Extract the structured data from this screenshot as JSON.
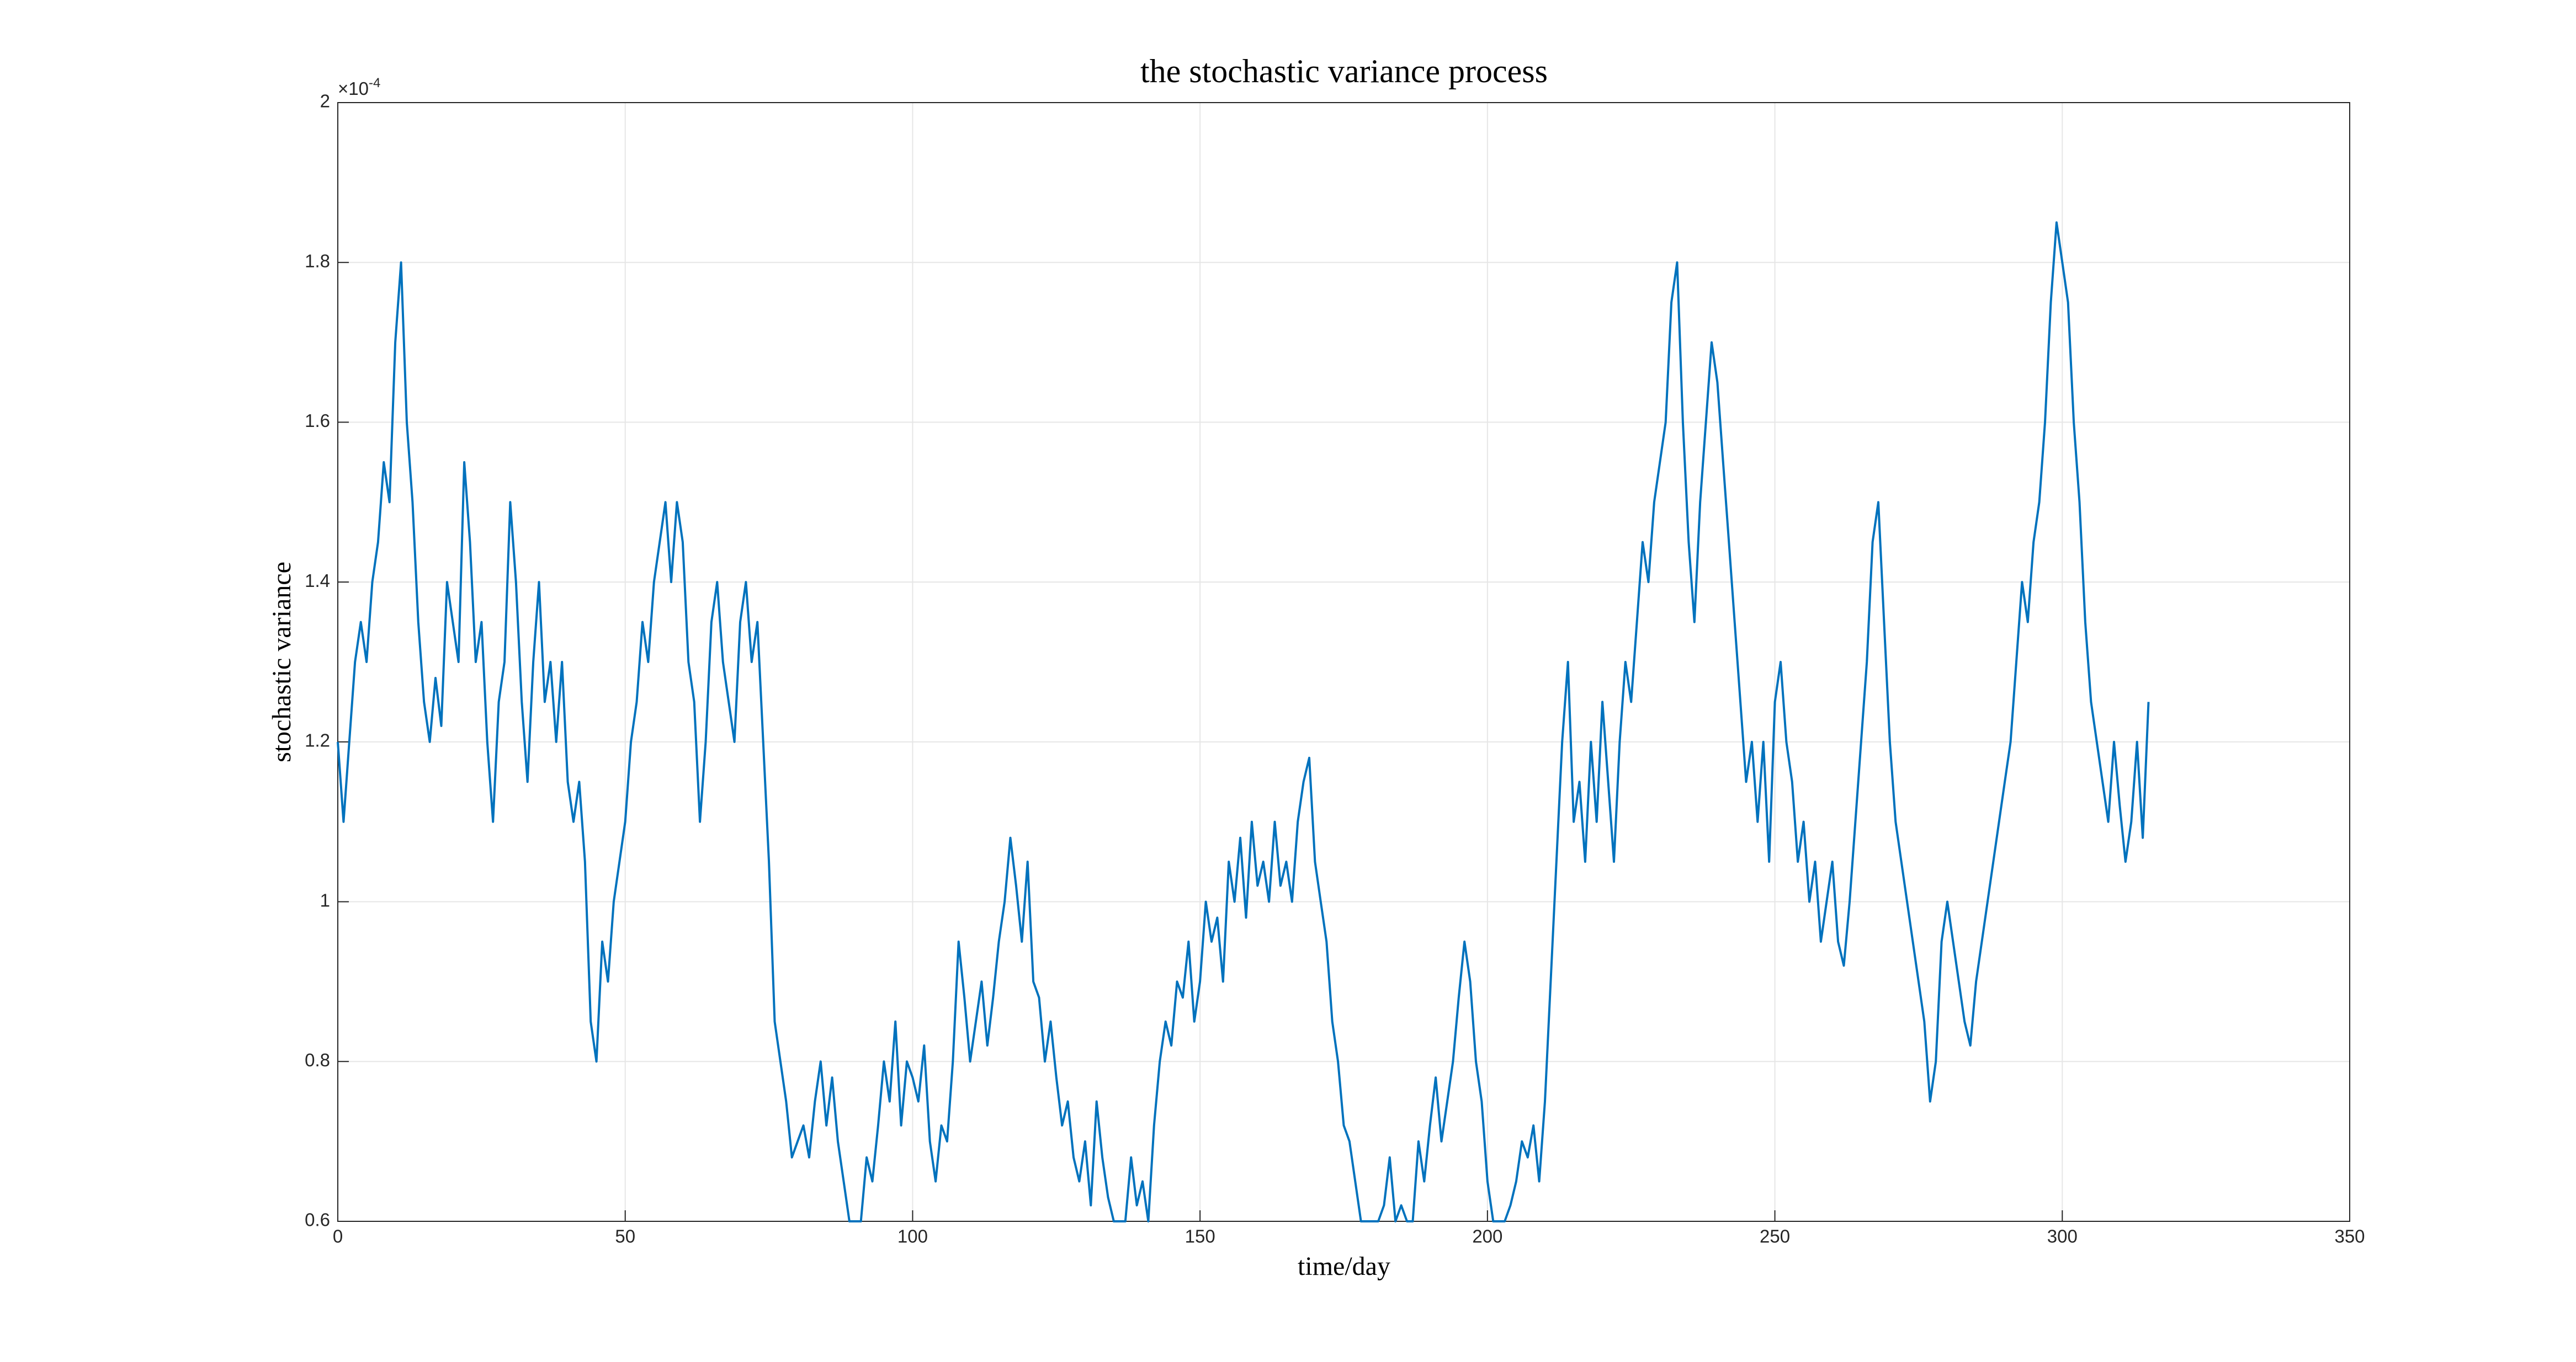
{
  "chart_data": {
    "type": "line",
    "title": "the stochastic variance process",
    "x_label": "time/day",
    "y_label": "stochastic variance",
    "y_multiplier": {
      "base": "×10",
      "exponent": "-4"
    },
    "color": "#0072bd",
    "grid": true,
    "xlim": [
      0,
      350
    ],
    "xticks": [
      0,
      50,
      100,
      150,
      200,
      250,
      300,
      350
    ],
    "ylim": [
      0.6,
      2
    ],
    "yticks": [
      0.6,
      0.8,
      1,
      1.2,
      1.4,
      1.6,
      1.8,
      2
    ],
    "x": [
      0,
      1,
      2,
      3,
      4,
      5,
      6,
      7,
      8,
      9,
      10,
      11,
      12,
      13,
      14,
      15,
      16,
      17,
      18,
      19,
      20,
      21,
      22,
      23,
      24,
      25,
      26,
      27,
      28,
      29,
      30,
      31,
      32,
      33,
      34,
      35,
      36,
      37,
      38,
      39,
      40,
      41,
      42,
      43,
      44,
      45,
      46,
      47,
      48,
      49,
      50,
      51,
      52,
      53,
      54,
      55,
      56,
      57,
      58,
      59,
      60,
      61,
      62,
      63,
      64,
      65,
      66,
      67,
      68,
      69,
      70,
      71,
      72,
      73,
      74,
      75,
      76,
      77,
      78,
      79,
      80,
      81,
      82,
      83,
      84,
      85,
      86,
      87,
      88,
      89,
      90,
      91,
      92,
      93,
      94,
      95,
      96,
      97,
      98,
      99,
      100,
      101,
      102,
      103,
      104,
      105,
      106,
      107,
      108,
      109,
      110,
      111,
      112,
      113,
      114,
      115,
      116,
      117,
      118,
      119,
      120,
      121,
      122,
      123,
      124,
      125,
      126,
      127,
      128,
      129,
      130,
      131,
      132,
      133,
      134,
      135,
      136,
      137,
      138,
      139,
      140,
      141,
      142,
      143,
      144,
      145,
      146,
      147,
      148,
      149,
      150,
      151,
      152,
      153,
      154,
      155,
      156,
      157,
      158,
      159,
      160,
      161,
      162,
      163,
      164,
      165,
      166,
      167,
      168,
      169,
      170,
      171,
      172,
      173,
      174,
      175,
      176,
      177,
      178,
      179,
      180,
      181,
      182,
      183,
      184,
      185,
      186,
      187,
      188,
      189,
      190,
      191,
      192,
      193,
      194,
      195,
      196,
      197,
      198,
      199,
      200,
      201,
      202,
      203,
      204,
      205,
      206,
      207,
      208,
      209,
      210,
      211,
      212,
      213,
      214,
      215,
      216,
      217,
      218,
      219,
      220,
      221,
      222,
      223,
      224,
      225,
      226,
      227,
      228,
      229,
      230,
      231,
      232,
      233,
      234,
      235,
      236,
      237,
      238,
      239,
      240,
      241,
      242,
      243,
      244,
      245,
      246,
      247,
      248,
      249,
      250,
      251,
      252,
      253,
      254,
      255,
      256,
      257,
      258,
      259,
      260,
      261,
      262,
      263,
      264,
      265,
      266,
      267,
      268,
      269,
      270,
      271,
      272,
      273,
      274,
      275,
      276,
      277,
      278,
      279,
      280,
      281,
      282,
      283,
      284,
      285,
      286,
      287,
      288,
      289,
      290,
      291,
      292,
      293,
      294,
      295,
      296,
      297,
      298,
      299,
      300,
      301,
      302,
      303,
      304,
      305,
      306,
      307,
      308,
      309,
      310,
      311,
      312,
      313,
      314,
      315
    ],
    "values": [
      1.2,
      1.1,
      1.2,
      1.3,
      1.35,
      1.3,
      1.4,
      1.45,
      1.55,
      1.5,
      1.7,
      1.8,
      1.6,
      1.5,
      1.35,
      1.25,
      1.2,
      1.28,
      1.22,
      1.4,
      1.35,
      1.3,
      1.55,
      1.45,
      1.3,
      1.35,
      1.2,
      1.1,
      1.25,
      1.3,
      1.5,
      1.4,
      1.25,
      1.15,
      1.3,
      1.4,
      1.25,
      1.3,
      1.2,
      1.3,
      1.15,
      1.1,
      1.15,
      1.05,
      0.85,
      0.8,
      0.95,
      0.9,
      1.0,
      1.05,
      1.1,
      1.2,
      1.25,
      1.35,
      1.3,
      1.4,
      1.45,
      1.5,
      1.4,
      1.5,
      1.45,
      1.3,
      1.25,
      1.1,
      1.2,
      1.35,
      1.4,
      1.3,
      1.25,
      1.2,
      1.35,
      1.4,
      1.3,
      1.35,
      1.2,
      1.05,
      0.85,
      0.8,
      0.75,
      0.68,
      0.7,
      0.72,
      0.68,
      0.75,
      0.8,
      0.72,
      0.78,
      0.7,
      0.65,
      0.6,
      0.6,
      0.6,
      0.68,
      0.65,
      0.72,
      0.8,
      0.75,
      0.85,
      0.72,
      0.8,
      0.78,
      0.75,
      0.82,
      0.7,
      0.65,
      0.72,
      0.7,
      0.8,
      0.95,
      0.88,
      0.8,
      0.85,
      0.9,
      0.82,
      0.88,
      0.95,
      1.0,
      1.08,
      1.02,
      0.95,
      1.05,
      0.9,
      0.88,
      0.8,
      0.85,
      0.78,
      0.72,
      0.75,
      0.68,
      0.65,
      0.7,
      0.62,
      0.75,
      0.68,
      0.63,
      0.6,
      0.6,
      0.6,
      0.68,
      0.62,
      0.65,
      0.6,
      0.72,
      0.8,
      0.85,
      0.82,
      0.9,
      0.88,
      0.95,
      0.85,
      0.9,
      1.0,
      0.95,
      0.98,
      0.9,
      1.05,
      1.0,
      1.08,
      0.98,
      1.1,
      1.02,
      1.05,
      1.0,
      1.1,
      1.02,
      1.05,
      1.0,
      1.1,
      1.15,
      1.18,
      1.05,
      1.0,
      0.95,
      0.85,
      0.8,
      0.72,
      0.7,
      0.65,
      0.6,
      0.6,
      0.6,
      0.6,
      0.62,
      0.68,
      0.6,
      0.62,
      0.6,
      0.6,
      0.7,
      0.65,
      0.72,
      0.78,
      0.7,
      0.75,
      0.8,
      0.88,
      0.95,
      0.9,
      0.8,
      0.75,
      0.65,
      0.6,
      0.6,
      0.6,
      0.62,
      0.65,
      0.7,
      0.68,
      0.72,
      0.65,
      0.75,
      0.9,
      1.05,
      1.2,
      1.3,
      1.1,
      1.15,
      1.05,
      1.2,
      1.1,
      1.25,
      1.15,
      1.05,
      1.2,
      1.3,
      1.25,
      1.35,
      1.45,
      1.4,
      1.5,
      1.55,
      1.6,
      1.75,
      1.8,
      1.6,
      1.45,
      1.35,
      1.5,
      1.6,
      1.7,
      1.65,
      1.55,
      1.45,
      1.35,
      1.25,
      1.15,
      1.2,
      1.1,
      1.2,
      1.05,
      1.25,
      1.3,
      1.2,
      1.15,
      1.05,
      1.1,
      1.0,
      1.05,
      0.95,
      1.0,
      1.05,
      0.95,
      0.92,
      1.0,
      1.1,
      1.2,
      1.3,
      1.45,
      1.5,
      1.35,
      1.2,
      1.1,
      1.05,
      1.0,
      0.95,
      0.9,
      0.85,
      0.75,
      0.8,
      0.95,
      1.0,
      0.95,
      0.9,
      0.85,
      0.82,
      0.9,
      0.95,
      1.0,
      1.05,
      1.1,
      1.15,
      1.2,
      1.3,
      1.4,
      1.35,
      1.45,
      1.5,
      1.6,
      1.75,
      1.85,
      1.8,
      1.75,
      1.6,
      1.5,
      1.35,
      1.25,
      1.2,
      1.15,
      1.1,
      1.2,
      1.12,
      1.05,
      1.1,
      1.2,
      1.08,
      1.25
    ]
  }
}
